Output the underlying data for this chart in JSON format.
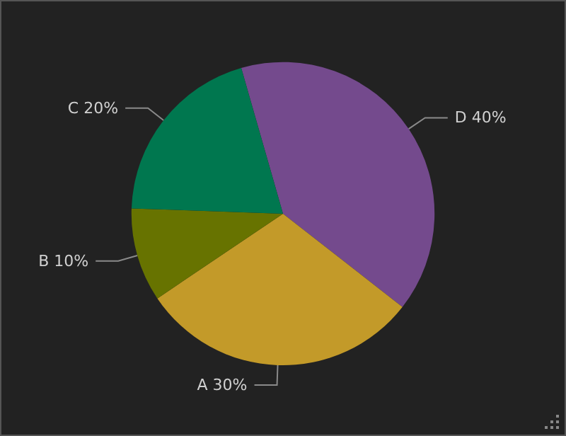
{
  "chart_data": {
    "type": "pie",
    "categories": [
      "D",
      "A",
      "B",
      "C"
    ],
    "values": [
      40,
      30,
      10,
      20
    ],
    "colors": [
      "#744a8d",
      "#c39a29",
      "#677300",
      "#00774f"
    ],
    "value_labels": [
      "40%",
      "30%",
      "10%",
      "20%"
    ],
    "legend": false
  }
}
